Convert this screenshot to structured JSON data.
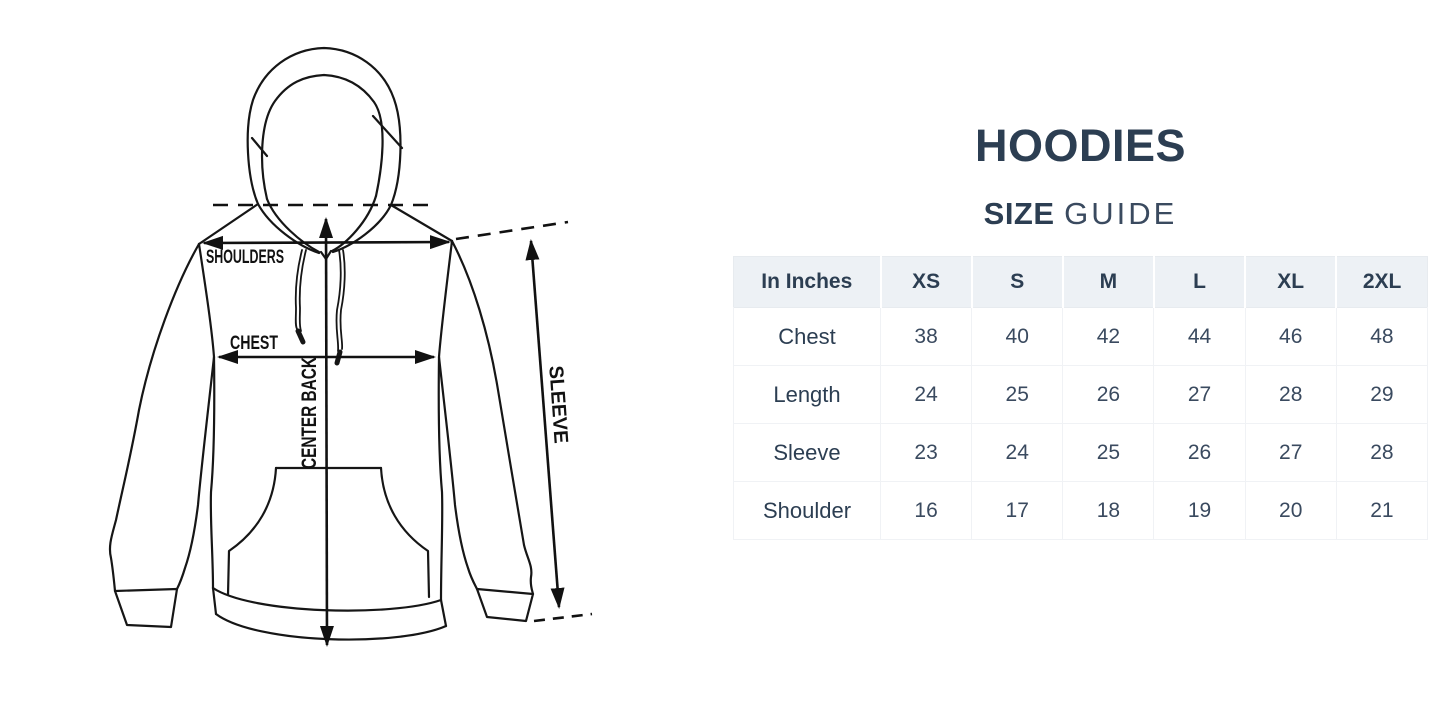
{
  "theme": {
    "ink": "#111111",
    "navy": "#2c3e52",
    "navy_soft": "#3a4a5f",
    "header_bg": "#edf1f5",
    "border": "#e7ebef",
    "border_soft": "#f0f2f5",
    "page_bg": "#ffffff"
  },
  "header": {
    "title": "HOODIES",
    "subtitle_bold": "SIZE",
    "subtitle_light": "GUIDE"
  },
  "diagram": {
    "labels": {
      "shoulders": "SHOULDERS",
      "chest": "CHEST",
      "center_back": "CENTER BACK",
      "sleeve": "SLEEVE"
    }
  },
  "size_table": {
    "unit_header": "In Inches",
    "columns": [
      "XS",
      "S",
      "M",
      "L",
      "XL",
      "2XL"
    ],
    "rows": [
      {
        "label": "Chest",
        "values": [
          "38",
          "40",
          "42",
          "44",
          "46",
          "48"
        ]
      },
      {
        "label": "Length",
        "values": [
          "24",
          "25",
          "26",
          "27",
          "28",
          "29"
        ]
      },
      {
        "label": "Sleeve",
        "values": [
          "23",
          "24",
          "25",
          "26",
          "27",
          "28"
        ]
      },
      {
        "label": "Shoulder",
        "values": [
          "16",
          "17",
          "18",
          "19",
          "20",
          "21"
        ]
      }
    ]
  }
}
